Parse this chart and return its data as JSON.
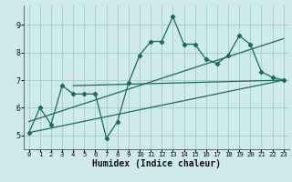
{
  "xlabel": "Humidex (Indice chaleur)",
  "background_color": "#ceeaea",
  "grid_color": "#aacfcf",
  "line_color": "#1a6b5a",
  "xlim": [
    -0.5,
    23.5
  ],
  "ylim": [
    4.5,
    9.7
  ],
  "xticks": [
    0,
    1,
    2,
    3,
    4,
    5,
    6,
    7,
    8,
    9,
    10,
    11,
    12,
    13,
    14,
    15,
    16,
    17,
    18,
    19,
    20,
    21,
    22,
    23
  ],
  "yticks": [
    5,
    6,
    7,
    8,
    9
  ],
  "series1_x": [
    0,
    1,
    2,
    3,
    4,
    5,
    6,
    7,
    8,
    9,
    10,
    11,
    12,
    13,
    14,
    15,
    16,
    17,
    18,
    19,
    20,
    21,
    22,
    23
  ],
  "series1_y": [
    5.1,
    6.0,
    5.4,
    6.8,
    6.5,
    6.5,
    6.5,
    4.9,
    5.5,
    6.9,
    7.9,
    8.4,
    8.4,
    9.3,
    8.3,
    8.3,
    7.75,
    7.6,
    7.9,
    8.6,
    8.3,
    7.3,
    7.1,
    7.0
  ],
  "trend1_x": [
    0,
    23
  ],
  "trend1_y": [
    5.1,
    7.0
  ],
  "trend2_x": [
    4,
    23
  ],
  "trend2_y": [
    6.8,
    7.0
  ],
  "trend3_x": [
    0,
    23
  ],
  "trend3_y": [
    5.5,
    8.5
  ]
}
